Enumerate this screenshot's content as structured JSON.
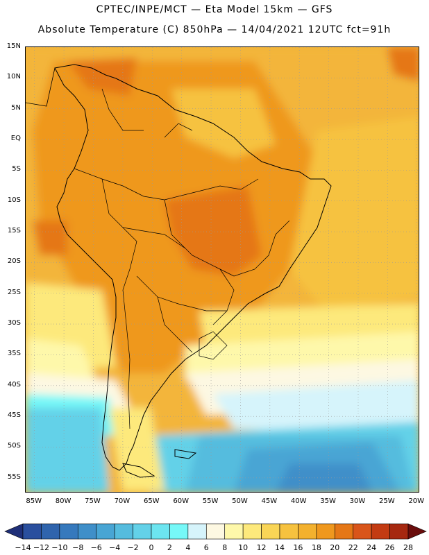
{
  "header": {
    "title_line1": "CPTEC/INPE/MCT —  Eta Model 15km — GFS",
    "title_line2": "Absolute Temperature (C) 850hPa — 14/04/2021 12UTC fct=91h"
  },
  "map": {
    "region": "South America",
    "field": "850hPa absolute temperature",
    "lat_labels": [
      "15N",
      "10N",
      "5N",
      "EQ",
      "5S",
      "10S",
      "15S",
      "20S",
      "25S",
      "30S",
      "35S",
      "40S",
      "45S",
      "50S",
      "55S"
    ],
    "lon_labels": [
      "85W",
      "80W",
      "75W",
      "70W",
      "65W",
      "60W",
      "55W",
      "50W",
      "45W",
      "40W",
      "35W",
      "30W",
      "25W",
      "20W"
    ],
    "gridlines": "dotted"
  },
  "colorbar": {
    "labels": [
      "-14",
      "-12",
      "-10",
      "-8",
      "-6",
      "-4",
      "-2",
      "0",
      "2",
      "4",
      "6",
      "8",
      "10",
      "12",
      "14",
      "16",
      "18",
      "20",
      "22",
      "24",
      "26",
      "28"
    ],
    "colors": [
      "#2a4f9e",
      "#2f64ad",
      "#3679bd",
      "#3f8fc9",
      "#48a5d4",
      "#55bcde",
      "#63d1e8",
      "#6ce5f0",
      "#76f8f8",
      "#d6f4fb",
      "#fdf8e2",
      "#fef8aa",
      "#fde97c",
      "#f9d556",
      "#f6c23f",
      "#f3b12e",
      "#ef981e",
      "#e57716",
      "#d9551a",
      "#c33b12",
      "#a62810",
      "#84190d"
    ],
    "min_arrow_color": "#1f2f78",
    "max_arrow_color": "#6a0d0c"
  }
}
